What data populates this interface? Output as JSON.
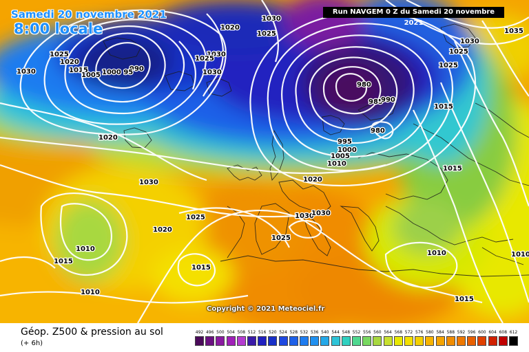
{
  "header": {
    "date_title": "Samedi 20 novembre 2021",
    "time_title": "8:00 locale",
    "run_info": "Run NAVGEM 0 Z du Samedi 20 novembre 2021"
  },
  "footer": {
    "product_title": "Géop. Z500 & pression au sol",
    "lead_time": "(+ 6h)",
    "copyright": "Copyright © 2021 Meteociel.fr"
  },
  "isobar_labels": [
    "1030",
    "1020",
    "1025",
    "1030",
    "1025",
    "1030",
    "990",
    "1025",
    "1020",
    "1030",
    "1015",
    "1005",
    "1000 95",
    "1020",
    "1030",
    "1025",
    "1020",
    "1010",
    "1015",
    "1015",
    "1010",
    "1025",
    "1030",
    "1030",
    "1020",
    "1010",
    "1005",
    "1000",
    "995",
    "980",
    "985",
    "990",
    "980",
    "1015",
    "1015",
    "1025",
    "1025",
    "1030",
    "1035",
    "1010",
    "1010",
    "1015"
  ],
  "legend": {
    "values": [
      "492",
      "496",
      "500",
      "504",
      "508",
      "512",
      "516",
      "520",
      "524",
      "528",
      "532",
      "536",
      "540",
      "544",
      "548",
      "552",
      "556",
      "560",
      "564",
      "568",
      "572",
      "576",
      "580",
      "584",
      "588",
      "592",
      "596",
      "600",
      "604",
      "608",
      "612"
    ],
    "colors": [
      "#4a0a5a",
      "#6a1080",
      "#8a1aa0",
      "#a020b8",
      "#b43cd0",
      "#3a1aa8",
      "#2020c0",
      "#1830c8",
      "#1e48e0",
      "#1e60e8",
      "#1e7cf0",
      "#2090f0",
      "#24a8e8",
      "#2ec4d8",
      "#30d0c0",
      "#50d890",
      "#78d860",
      "#a8d840",
      "#c8e030",
      "#e8e800",
      "#f4e000",
      "#f4d000",
      "#f7b400",
      "#f5a400",
      "#f08c00",
      "#ee7800",
      "#e86000",
      "#e04000",
      "#d02000",
      "#c00000",
      "#000000"
    ]
  }
}
